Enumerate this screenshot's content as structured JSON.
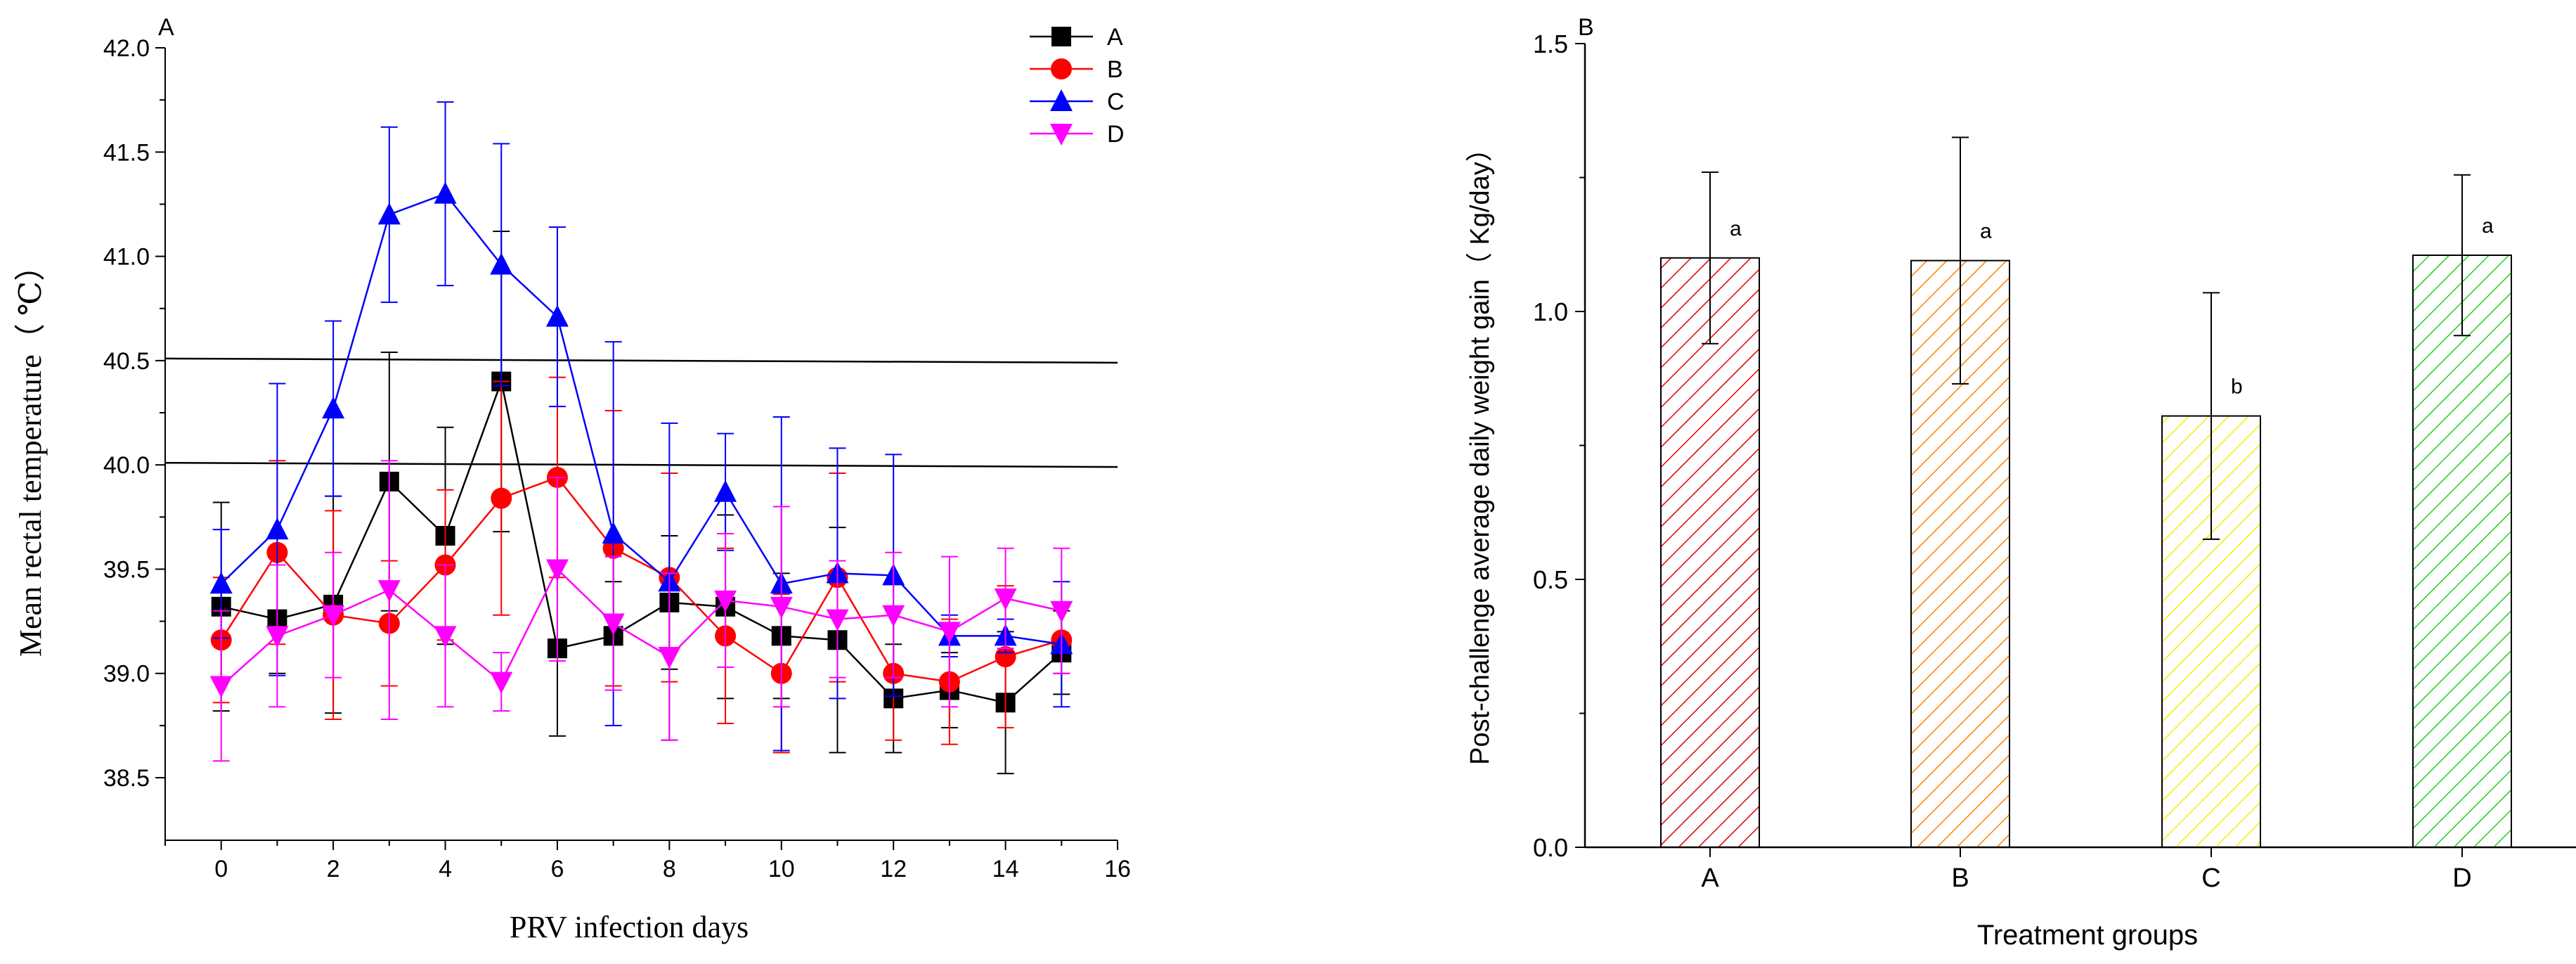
{
  "chart_data": [
    {
      "type": "line",
      "panel_label": "A",
      "title": "",
      "xlabel": "PRV infection days",
      "ylabel": "Mean rectal temperature（ ℃）",
      "xlim": [
        -1,
        16
      ],
      "ylim": [
        38.2,
        42.0
      ],
      "xticks": [
        0,
        2,
        4,
        6,
        8,
        10,
        12,
        14,
        16
      ],
      "xtick_labels": [
        "0",
        "2",
        "4",
        "6",
        "8",
        "10",
        "12",
        "14",
        "16"
      ],
      "yticks": [
        38.5,
        39.0,
        39.5,
        40.0,
        40.5,
        41.0,
        41.5,
        42.0
      ],
      "ytick_labels": [
        "38.5",
        "39.0",
        "39.5",
        "40.0",
        "40.5",
        "41.0",
        "41.5",
        "42.0"
      ],
      "x": [
        0,
        1,
        2,
        3,
        4,
        5,
        6,
        7,
        8,
        9,
        10,
        11,
        12,
        13,
        14,
        15
      ],
      "reference_lines": [
        {
          "y_start": 40.51,
          "y_end": 40.49
        },
        {
          "y_start": 40.01,
          "y_end": 39.99
        }
      ],
      "legend": [
        "A",
        "B",
        "C",
        "D"
      ],
      "legend_position": "top-right",
      "series": [
        {
          "name": "A",
          "color": "#000000",
          "marker": "square",
          "values": [
            39.32,
            39.26,
            39.33,
            39.92,
            39.66,
            40.4,
            39.12,
            39.18,
            39.34,
            39.32,
            39.18,
            39.16,
            38.88,
            38.92,
            38.86,
            39.1
          ],
          "errors": [
            0.5,
            0.26,
            0.52,
            0.62,
            0.52,
            0.72,
            0.42,
            0.26,
            0.32,
            0.44,
            0.3,
            0.54,
            0.26,
            0.18,
            0.34,
            0.2
          ]
        },
        {
          "name": "B",
          "color": "#ff0000",
          "marker": "circle",
          "values": [
            39.16,
            39.58,
            39.28,
            39.24,
            39.52,
            39.84,
            39.94,
            39.6,
            39.46,
            39.18,
            39.0,
            39.46,
            39.0,
            38.96,
            39.08,
            39.16
          ],
          "errors": [
            0.3,
            0.44,
            0.5,
            0.3,
            0.36,
            0.56,
            0.48,
            0.66,
            0.5,
            0.42,
            0.38,
            0.5,
            0.32,
            0.3,
            0.34,
            0.16
          ]
        },
        {
          "name": "C",
          "color": "#0000ff",
          "marker": "triangle-up",
          "values": [
            39.43,
            39.69,
            40.27,
            41.2,
            41.3,
            40.96,
            40.71,
            39.67,
            39.44,
            39.87,
            39.43,
            39.48,
            39.47,
            39.18,
            39.18,
            39.14
          ],
          "errors": [
            0.26,
            0.7,
            0.42,
            0.42,
            0.44,
            0.58,
            0.43,
            0.92,
            0.76,
            0.28,
            0.8,
            0.6,
            0.58,
            0.1,
            0.08,
            0.3
          ]
        },
        {
          "name": "D",
          "color": "#ff00ff",
          "marker": "triangle-down",
          "values": [
            38.94,
            39.18,
            39.28,
            39.4,
            39.18,
            38.96,
            39.5,
            39.24,
            39.08,
            39.35,
            39.32,
            39.26,
            39.28,
            39.2,
            39.36,
            39.3
          ],
          "errors": [
            0.36,
            0.34,
            0.3,
            0.62,
            0.34,
            0.14,
            0.44,
            0.32,
            0.4,
            0.32,
            0.48,
            0.28,
            0.3,
            0.36,
            0.24,
            0.3
          ]
        }
      ]
    },
    {
      "type": "bar",
      "panel_label": "B",
      "title": "",
      "xlabel": "Treatment groups",
      "ylabel": "Post-challenge average daily weight gain（ Kg/day）",
      "ylim": [
        0.0,
        1.5
      ],
      "yticks": [
        0.0,
        0.5,
        1.0,
        1.5
      ],
      "ytick_labels": [
        "0.0",
        "0.5",
        "1.0",
        "1.5"
      ],
      "categories": [
        "A",
        "B",
        "C",
        "D"
      ],
      "values": [
        1.1,
        1.095,
        0.805,
        1.105
      ],
      "errors": [
        0.16,
        0.23,
        0.23,
        0.15
      ],
      "significance_labels": [
        "a",
        "a",
        "b",
        "a"
      ],
      "colors": [
        "#e00000",
        "#ff8000",
        "#f0f000",
        "#20d020"
      ]
    }
  ]
}
